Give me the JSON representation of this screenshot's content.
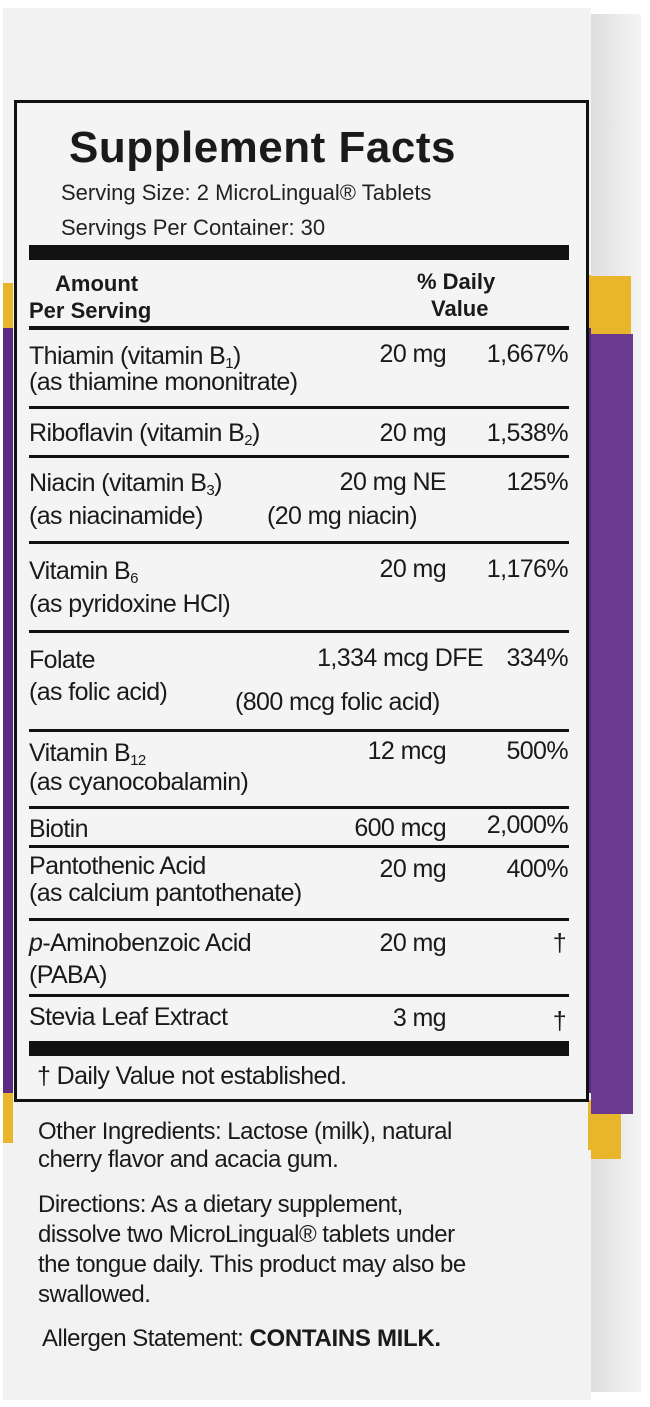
{
  "label": {
    "title": "Supplement Facts",
    "serving_size": "Serving Size: 2 MicroLingual® Tablets",
    "servings_per_container": "Servings Per Container: 30",
    "header_amount_1": "Amount",
    "header_amount_2": "Per Serving",
    "header_dv_1": "% Daily",
    "header_dv_2": "Value",
    "rows": [
      {
        "name_pre": "Thiamin (vitamin B",
        "sub": "1",
        "name_post": ")",
        "line2": "(as thiamine mononitrate)",
        "amount": "20 mg",
        "dv": "1,667%"
      },
      {
        "name_pre": "Riboflavin (vitamin B",
        "sub": "2",
        "name_post": ")",
        "amount": "20 mg",
        "dv": "1,538%"
      },
      {
        "name_pre": "Niacin (vitamin B",
        "sub": "3",
        "name_post": ")",
        "line2": "(as niacinamide)",
        "amount": "20 mg NE",
        "amount2": "(20 mg niacin)",
        "dv": "125%"
      },
      {
        "name_pre": "Vitamin B",
        "sub": "6",
        "line2": "(as pyridoxine  HCl)",
        "amount": "20 mg",
        "dv": "1,176%"
      },
      {
        "name_pre": "Folate",
        "line2": "(as folic acid)",
        "amount": "1,334 mcg DFE",
        "amount2": "(800 mcg folic acid)",
        "dv": "334%"
      },
      {
        "name_pre": "Vitamin B",
        "sub": "12",
        "line2": "(as cyanocobalamin)",
        "amount": "12 mcg",
        "dv": "500%"
      },
      {
        "name_pre": "Biotin",
        "amount": "600 mcg",
        "dv": "2,000%"
      },
      {
        "name_pre": "Pantothenic Acid",
        "line2": "(as calcium pantothenate)",
        "amount": "20 mg",
        "dv": "400%"
      },
      {
        "name_italic": "p",
        "name_pre": "-Aminobenzoic Acid",
        "line2": "(PABA)",
        "amount": "20 mg",
        "dv": "†"
      },
      {
        "name_pre": "Stevia Leaf Extract",
        "amount": "3 mg",
        "dv": "†"
      }
    ],
    "footnote": "† Daily Value not established."
  },
  "other_ingredients": {
    "line1": "Other Ingredients: Lactose (milk), natural",
    "line2": "cherry flavor and acacia gum."
  },
  "directions": {
    "line1": "Directions: As a dietary supplement,",
    "line2": "dissolve two MicroLingual® tablets under",
    "line3": "the tongue daily. This product may also be",
    "line4": "swallowed."
  },
  "allergen": {
    "label": "Allergen Statement: ",
    "value": "CONTAINS MILK."
  },
  "colors": {
    "purple": "#5d2a82",
    "yellow": "#e9b52a",
    "background": "#f2f2f2"
  }
}
